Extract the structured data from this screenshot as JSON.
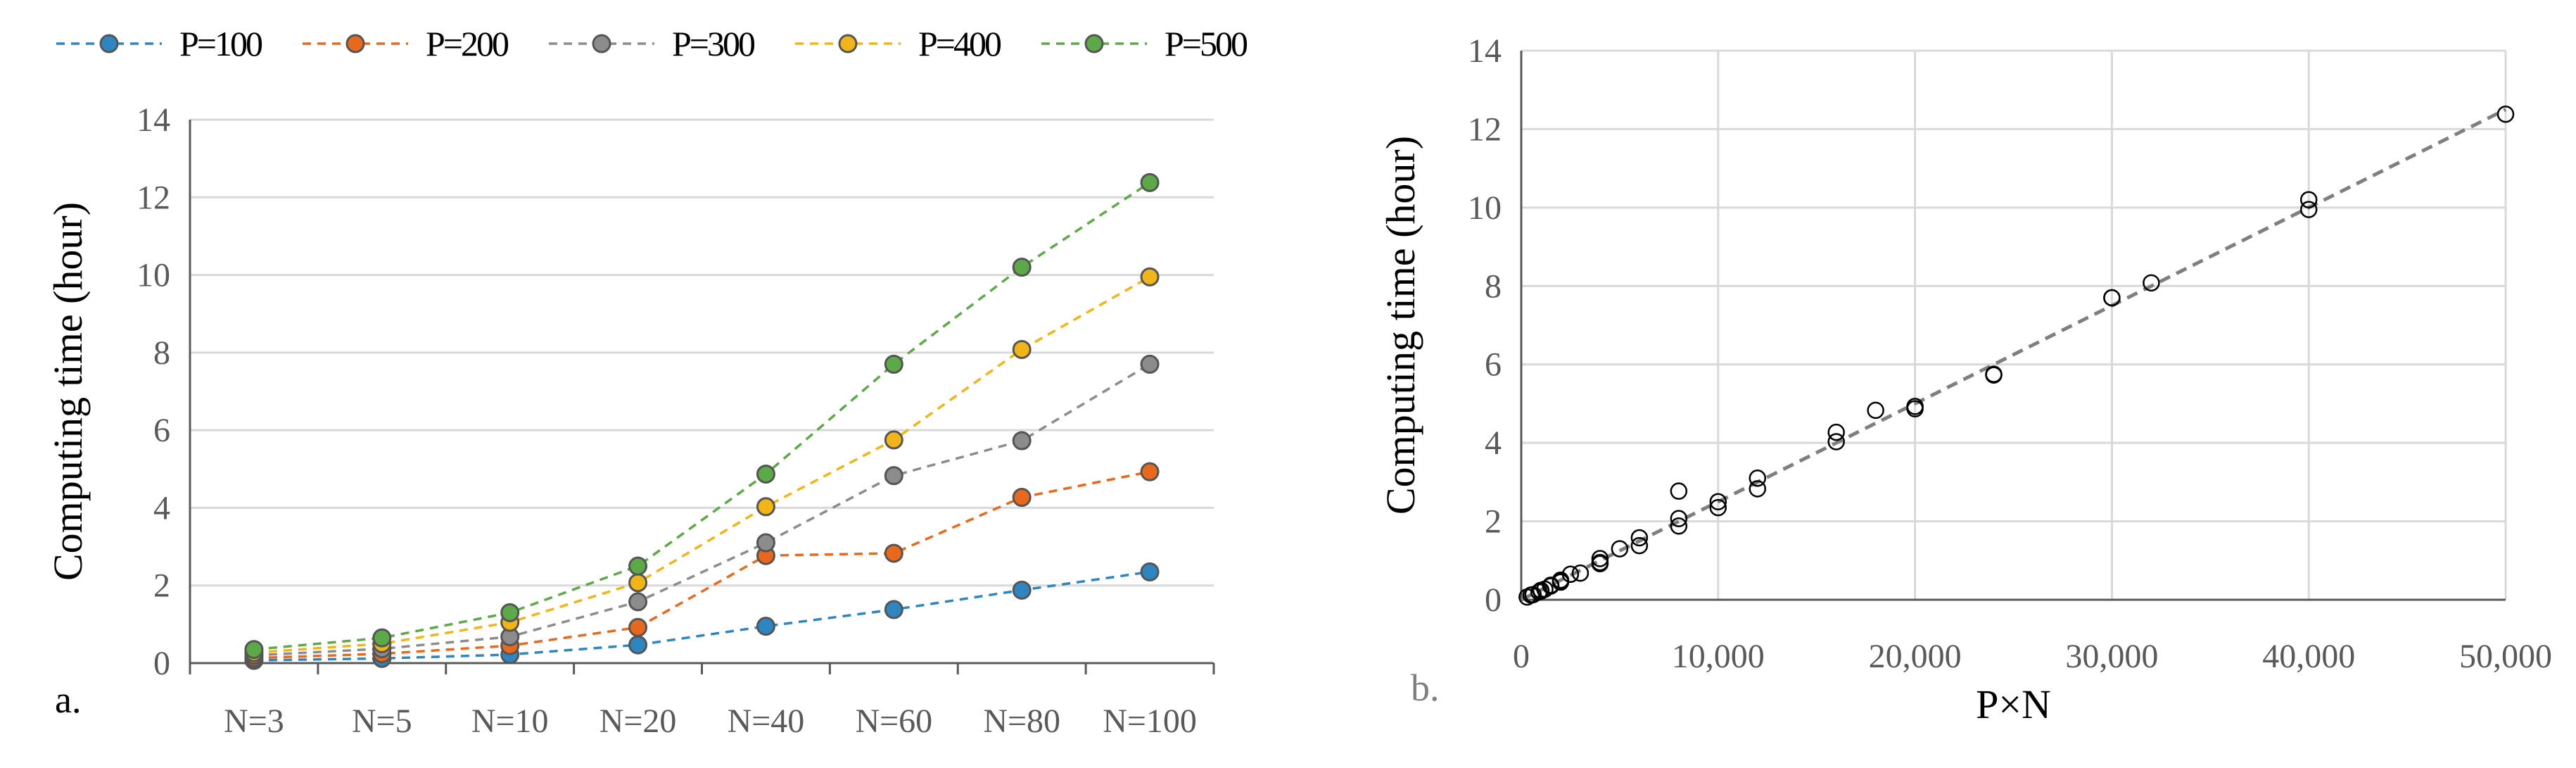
{
  "chart_data": [
    {
      "type": "line",
      "panel_label": "a.",
      "title": "",
      "xlabel": "",
      "ylabel": "Computing time (hour)",
      "categories": [
        "N=3",
        "N=5",
        "N=10",
        "N=20",
        "N=40",
        "N=60",
        "N=80",
        "N=100"
      ],
      "ylim": [
        0,
        14
      ],
      "yticks": [
        0,
        2,
        4,
        6,
        8,
        10,
        12,
        14
      ],
      "grid": true,
      "legend_position": "top",
      "series": [
        {
          "name": "P=100",
          "color": "#2E86C1",
          "values": [
            0.07,
            0.12,
            0.22,
            0.47,
            0.95,
            1.38,
            1.88,
            2.35
          ]
        },
        {
          "name": "P=200",
          "color": "#E8681C",
          "values": [
            0.13,
            0.24,
            0.45,
            0.92,
            2.77,
            2.83,
            4.27,
            4.93
          ]
        },
        {
          "name": "P=300",
          "color": "#8C8C8C",
          "values": [
            0.2,
            0.37,
            0.68,
            1.58,
            3.1,
            4.83,
            5.73,
            7.7
          ]
        },
        {
          "name": "P=400",
          "color": "#F2B517",
          "values": [
            0.27,
            0.5,
            1.05,
            2.07,
            4.03,
            5.75,
            8.08,
            9.95
          ]
        },
        {
          "name": "P=500",
          "color": "#5CAA47",
          "values": [
            0.35,
            0.65,
            1.3,
            2.5,
            4.87,
            7.7,
            10.2,
            12.38
          ]
        }
      ]
    },
    {
      "type": "scatter",
      "panel_label": "b.",
      "title": "",
      "xlabel": "P×N",
      "ylabel": "Computing time (hour)",
      "xlim": [
        0,
        50000
      ],
      "ylim": [
        0,
        14
      ],
      "xticks": [
        0,
        10000,
        20000,
        30000,
        40000,
        50000
      ],
      "xtick_labels": [
        "0",
        "10,000",
        "20,000",
        "30,000",
        "40,000",
        "50,000"
      ],
      "yticks": [
        0,
        2,
        4,
        6,
        8,
        10,
        12,
        14
      ],
      "grid": true,
      "trendline": {
        "style": "dashed",
        "color": "#7F7F7F",
        "x": [
          0,
          50000
        ],
        "y": [
          0,
          12.5
        ]
      },
      "points": [
        {
          "x": 300,
          "y": 0.07
        },
        {
          "x": 500,
          "y": 0.12
        },
        {
          "x": 1000,
          "y": 0.22
        },
        {
          "x": 2000,
          "y": 0.47
        },
        {
          "x": 4000,
          "y": 0.95
        },
        {
          "x": 6000,
          "y": 1.38
        },
        {
          "x": 8000,
          "y": 1.88
        },
        {
          "x": 10000,
          "y": 2.35
        },
        {
          "x": 600,
          "y": 0.13
        },
        {
          "x": 1000,
          "y": 0.24
        },
        {
          "x": 2000,
          "y": 0.45
        },
        {
          "x": 4000,
          "y": 0.92
        },
        {
          "x": 8000,
          "y": 2.77
        },
        {
          "x": 12000,
          "y": 2.83
        },
        {
          "x": 16000,
          "y": 4.27
        },
        {
          "x": 20000,
          "y": 4.93
        },
        {
          "x": 900,
          "y": 0.2
        },
        {
          "x": 1500,
          "y": 0.37
        },
        {
          "x": 3000,
          "y": 0.68
        },
        {
          "x": 6000,
          "y": 1.58
        },
        {
          "x": 12000,
          "y": 3.1
        },
        {
          "x": 18000,
          "y": 4.83
        },
        {
          "x": 24000,
          "y": 5.73
        },
        {
          "x": 30000,
          "y": 7.7
        },
        {
          "x": 1200,
          "y": 0.27
        },
        {
          "x": 2000,
          "y": 0.5
        },
        {
          "x": 4000,
          "y": 1.05
        },
        {
          "x": 8000,
          "y": 2.07
        },
        {
          "x": 16000,
          "y": 4.03
        },
        {
          "x": 24000,
          "y": 5.75
        },
        {
          "x": 32000,
          "y": 8.08
        },
        {
          "x": 40000,
          "y": 9.95
        },
        {
          "x": 1500,
          "y": 0.35
        },
        {
          "x": 2500,
          "y": 0.65
        },
        {
          "x": 5000,
          "y": 1.3
        },
        {
          "x": 10000,
          "y": 2.5
        },
        {
          "x": 20000,
          "y": 4.87
        },
        {
          "x": 30000,
          "y": 7.7
        },
        {
          "x": 40000,
          "y": 10.2
        },
        {
          "x": 50000,
          "y": 12.38
        }
      ]
    }
  ]
}
